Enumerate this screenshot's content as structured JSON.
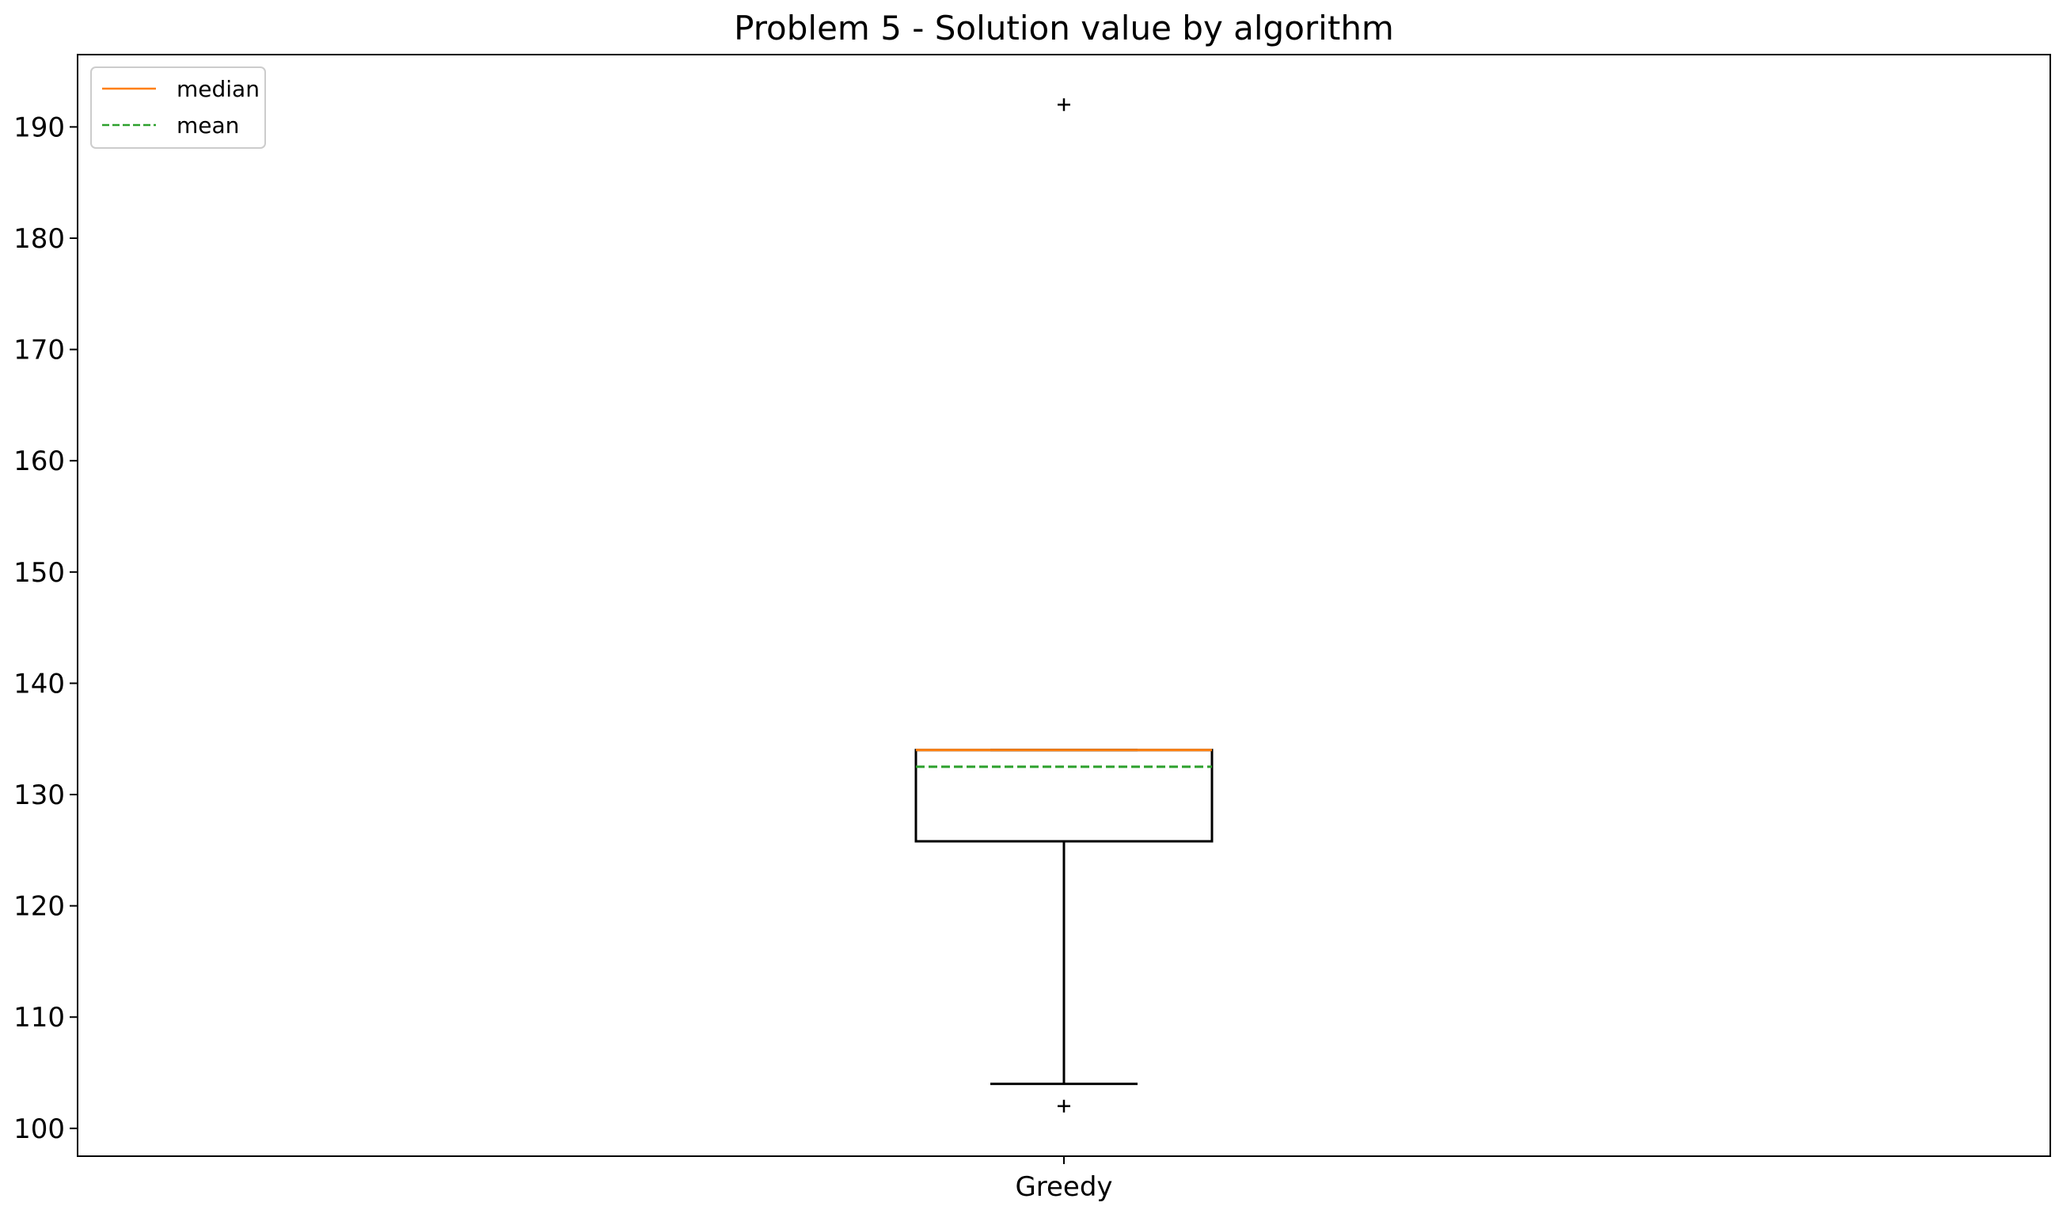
{
  "chart_data": {
    "type": "box",
    "title": "Problem 5 - Solution value by algorithm",
    "xlabel": "",
    "ylabel": "",
    "categories": [
      "Greedy"
    ],
    "ylim": [
      97.5,
      196.5
    ],
    "yticks": [
      100,
      110,
      120,
      130,
      140,
      150,
      160,
      170,
      180,
      190
    ],
    "grid": false,
    "legend": {
      "placement": "top-left",
      "entries": [
        {
          "label": "median",
          "color": "#ff7f0e",
          "style": "solid"
        },
        {
          "label": "mean",
          "color": "#2ca02c",
          "style": "dashed"
        }
      ]
    },
    "boxes": [
      {
        "category": "Greedy",
        "whisker_low": 104,
        "q1": 125.8,
        "median": 134,
        "q3": 134,
        "whisker_high": 134,
        "mean": 132.5,
        "outliers": [
          192,
          102
        ]
      }
    ],
    "colors": {
      "box": "#000000",
      "median": "#ff7f0e",
      "mean": "#2ca02c"
    }
  }
}
